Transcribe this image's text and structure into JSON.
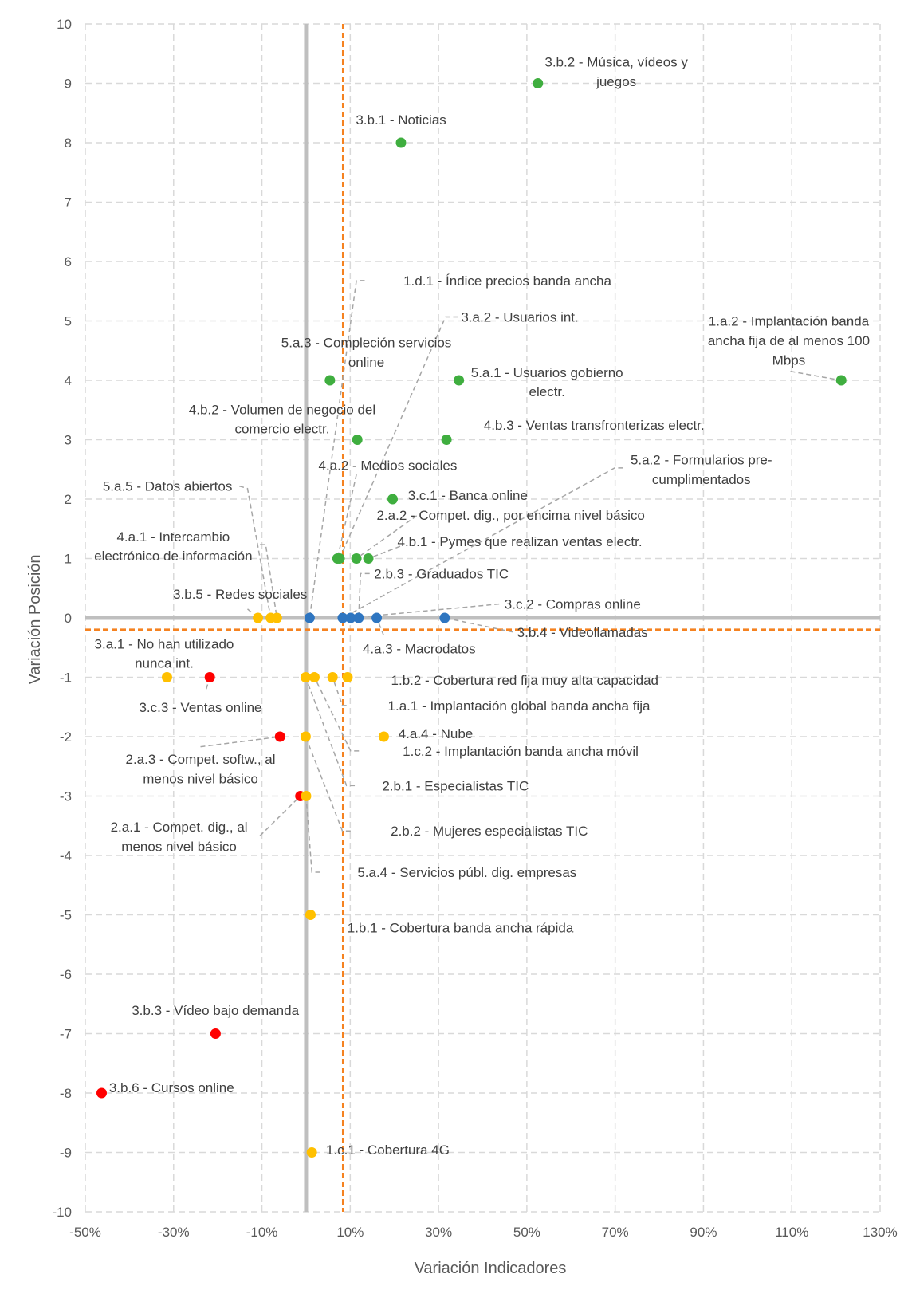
{
  "chart_data": {
    "type": "scatter",
    "title": "",
    "xlabel": "Variación Indicadores",
    "ylabel": "Variación Posición",
    "xlim": [
      -50,
      130
    ],
    "ylim": [
      -10,
      10
    ],
    "x_unit": "%",
    "x_ticks": [
      "-50%",
      "-30%",
      "-10%",
      "10%",
      "30%",
      "50%",
      "70%",
      "90%",
      "110%",
      "130%"
    ],
    "y_ticks": [
      "10",
      "9",
      "8",
      "7",
      "6",
      "5",
      "4",
      "3",
      "2",
      "1",
      "0",
      "-1",
      "-2",
      "-3",
      "-4",
      "-5",
      "-6",
      "-7",
      "-8",
      "-9",
      "-10"
    ],
    "grid": true,
    "legend": "none",
    "reference_lines": {
      "x": 8.4,
      "y": -0.2,
      "color": "#f58220"
    },
    "colors": {
      "green": "#3fae3f",
      "blue": "#2e75c0",
      "yellow": "#ffc000",
      "red": "#ff0000",
      "axis": "#bfbfbf"
    },
    "points": [
      {
        "id": "3.b.2",
        "x": 52.5,
        "y": 9,
        "color": "green",
        "label": [
          "3.b.2 - Música, vídeos y",
          "juegos"
        ]
      },
      {
        "id": "3.b.1",
        "x": 21.5,
        "y": 8,
        "color": "green",
        "label": [
          "3.b.1 - Noticias"
        ]
      },
      {
        "id": "1.a.2",
        "x": 121.2,
        "y": 4,
        "color": "green",
        "label": [
          "1.a.2 - Implantación banda",
          "ancha fija de al menos 100",
          "Mbps"
        ]
      },
      {
        "id": "5.a.3",
        "x": 5.4,
        "y": 4,
        "color": "green",
        "label": [
          "5.a.3 - Compleción servicios",
          "online"
        ]
      },
      {
        "id": "5.a.1",
        "x": 34.6,
        "y": 4,
        "color": "green",
        "label": [
          "5.a.1 - Usuarios gobierno",
          "electr."
        ]
      },
      {
        "id": "4.b.2",
        "x": 11.6,
        "y": 3,
        "color": "green",
        "label": [
          "4.b.2 - Volumen de negocio del",
          "comercio electr."
        ]
      },
      {
        "id": "4.b.3",
        "x": 31.8,
        "y": 3,
        "color": "green",
        "label": [
          "4.b.3 - Ventas transfronterizas electr."
        ]
      },
      {
        "id": "3.c.1",
        "x": 19.6,
        "y": 2,
        "color": "green",
        "label": [
          "3.c.1 - Banca online"
        ]
      },
      {
        "id": "4.a.2",
        "x": 7.1,
        "y": 1,
        "color": "green",
        "label": [
          "4.a.2 - Medios sociales"
        ]
      },
      {
        "id": "3.a.2",
        "x": 7.6,
        "y": 1,
        "color": "green",
        "label": [
          "3.a.2 - Usuarios int."
        ]
      },
      {
        "id": "2.a.2",
        "x": 11.4,
        "y": 1,
        "color": "green",
        "label": [
          "2.a.2 - Compet. dig., por encima nivel básico"
        ]
      },
      {
        "id": "4.b.1",
        "x": 14.1,
        "y": 1,
        "color": "green",
        "label": [
          "4.b.1 - Pymes que realizan ventas electr."
        ]
      },
      {
        "id": "1.d.1",
        "x": 0.8,
        "y": 0,
        "color": "blue",
        "label": [
          "1.d.1 - Índice precios banda ancha"
        ]
      },
      {
        "id": "5.a.2",
        "x": 8.3,
        "y": 0,
        "color": "blue",
        "label": [
          "5.a.2 - Formularios pre-",
          "cumplimentados"
        ]
      },
      {
        "id": "3.c.2",
        "x": 10.1,
        "y": 0,
        "color": "blue",
        "label": [
          "3.c.2 - Compras online"
        ]
      },
      {
        "id": "2.b.3",
        "x": 11.9,
        "y": 0,
        "color": "blue",
        "label": [
          "2.b.3 - Graduados TIC"
        ]
      },
      {
        "id": "4.a.3",
        "x": 16.0,
        "y": 0,
        "color": "blue",
        "label": [
          "4.a.3 - Macrodatos"
        ]
      },
      {
        "id": "3.b.4",
        "x": 31.4,
        "y": 0,
        "color": "blue",
        "label": [
          "3.b.4 - Videollamadas"
        ]
      },
      {
        "id": "3.b.5",
        "x": -10.9,
        "y": 0,
        "color": "yellow",
        "label": [
          "3.b.5 - Redes sociales"
        ]
      },
      {
        "id": "5.a.5",
        "x": -8.0,
        "y": 0,
        "color": "yellow",
        "label": [
          "5.a.5 - Datos abiertos"
        ]
      },
      {
        "id": "4.a.1",
        "x": -6.6,
        "y": 0,
        "color": "yellow",
        "label": [
          "4.a.1 - Intercambio",
          "electrónico de información"
        ]
      },
      {
        "id": "3.a.1",
        "x": -31.5,
        "y": -1,
        "color": "yellow",
        "label": [
          "3.a.1 - No han utilizado",
          "nunca int."
        ]
      },
      {
        "id": "3.c.3",
        "x": -21.8,
        "y": -1,
        "color": "red",
        "label": [
          "3.c.3 - Ventas online"
        ]
      },
      {
        "id": "2.b.1",
        "x": -0.1,
        "y": -1,
        "color": "yellow",
        "label": [
          "2.b.1 - Especialistas TIC"
        ]
      },
      {
        "id": "1.c.2",
        "x": 1.9,
        "y": -1,
        "color": "yellow",
        "label": [
          "1.c.2 - Implantación banda ancha móvil"
        ]
      },
      {
        "id": "1.a.1",
        "x": 6.0,
        "y": -1,
        "color": "yellow",
        "label": [
          "1.a.1 - Implantación global banda ancha fija"
        ]
      },
      {
        "id": "1.b.2",
        "x": 9.4,
        "y": -1,
        "color": "yellow",
        "label": [
          "1.b.2 - Cobertura red fija muy alta capacidad"
        ]
      },
      {
        "id": "2.a.3",
        "x": -5.9,
        "y": -2,
        "color": "red",
        "label": [
          "2.a.3 - Compet. softw., al",
          "menos nivel básico"
        ]
      },
      {
        "id": "2.b.2",
        "x": -0.1,
        "y": -2,
        "color": "yellow",
        "label": [
          "2.b.2 - Mujeres especialistas TIC"
        ]
      },
      {
        "id": "4.a.4",
        "x": 17.6,
        "y": -2,
        "color": "yellow",
        "label": [
          "4.a.4 - Nube"
        ]
      },
      {
        "id": "2.a.1",
        "x": -1.3,
        "y": -3,
        "color": "red",
        "label": [
          "2.a.1 - Compet. dig., al",
          "menos nivel básico"
        ]
      },
      {
        "id": "5.a.4",
        "x": 0.0,
        "y": -3,
        "color": "yellow",
        "label": [
          "5.a.4 - Servicios públ. dig. empresas"
        ]
      },
      {
        "id": "1.b.1",
        "x": 1.0,
        "y": -5,
        "color": "yellow",
        "label": [
          "1.b.1 - Cobertura banda ancha rápida"
        ]
      },
      {
        "id": "3.b.3",
        "x": -20.5,
        "y": -7,
        "color": "red",
        "label": [
          "3.b.3 - Vídeo bajo demanda"
        ]
      },
      {
        "id": "3.b.6",
        "x": -46.3,
        "y": -8,
        "color": "red",
        "label": [
          "3.b.6 - Cursos online"
        ]
      },
      {
        "id": "1.c.1",
        "x": 1.3,
        "y": -9,
        "color": "yellow",
        "label": [
          "1.c.1 - Cobertura 4G"
        ]
      }
    ]
  }
}
